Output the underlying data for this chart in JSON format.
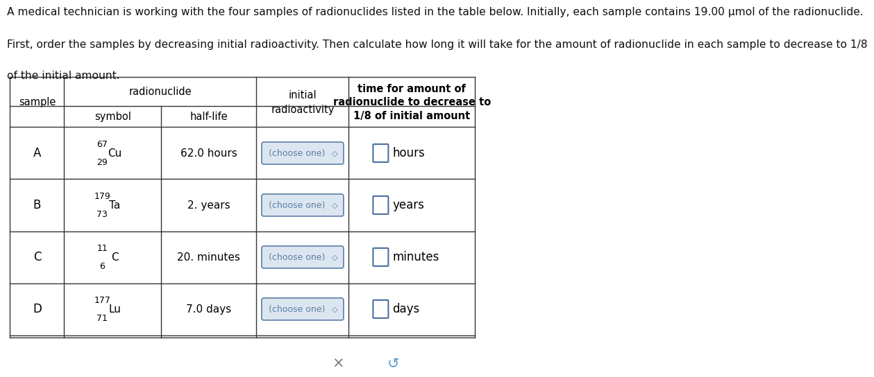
{
  "title_line1": "A medical technician is working with the four samples of radionuclides listed in the table below. Initially, each sample contains 19.00 μmol of the radionuclide.",
  "title_line2": "First, order the samples by decreasing initial radioactivity. Then calculate how long it will take for the amount of radionuclide in each sample to decrease to 1/8",
  "title_line3": "of the initial amount.",
  "samples": [
    "A",
    "B",
    "C",
    "D"
  ],
  "mass_numbers": [
    "67",
    "179",
    "11",
    "177"
  ],
  "atomic_numbers": [
    "29",
    "73",
    "6",
    "71"
  ],
  "elements": [
    "Cu",
    "Ta",
    "C",
    "Lu"
  ],
  "half_lives": [
    "62.0 hours",
    "2. years",
    "20. minutes",
    "7.0 days"
  ],
  "time_units": [
    "hours",
    "years",
    "minutes",
    "days"
  ],
  "choose_one_color": "#5b7fa6",
  "choose_one_bg": "#dce6f1",
  "table_border_color": "#333333",
  "header_text_color": "#000000",
  "body_text_color": "#000000",
  "input_box_color": "#4a6fa0",
  "bg_color": "#ffffff",
  "button_bg": "#e0e4e8",
  "button_border": "#b0bcc8",
  "title_color": "#111111"
}
